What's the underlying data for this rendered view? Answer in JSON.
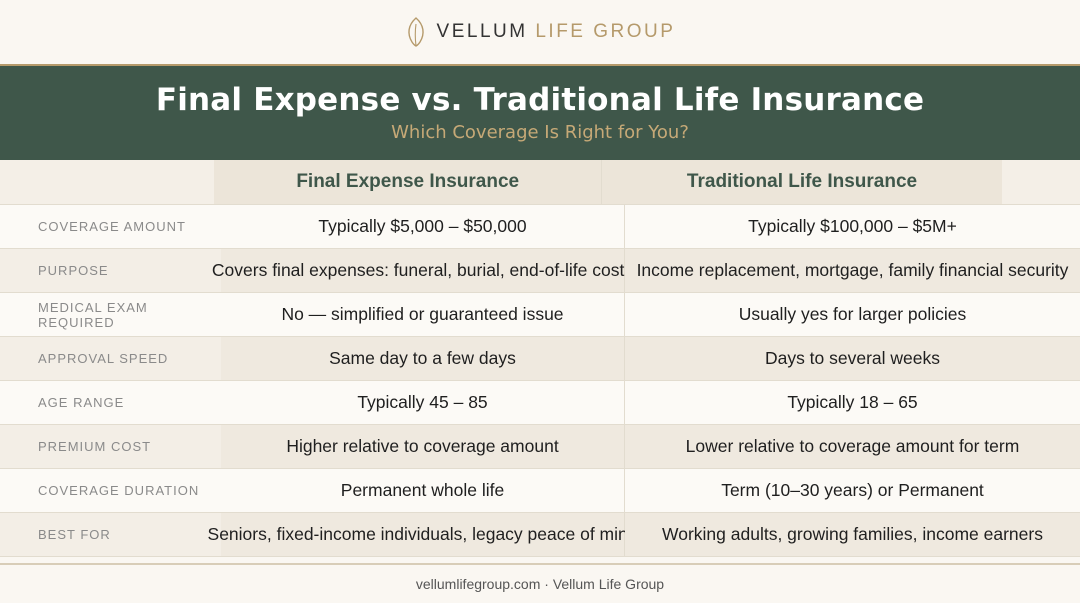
{
  "brand": {
    "name_primary": "VELLUM",
    "name_accent": "LIFE GROUP",
    "logo_icon": "leaf-icon",
    "accent_color": "#b59a6b"
  },
  "header": {
    "title": "Final Expense vs. Traditional Life Insurance",
    "subtitle": "Which Coverage Is Right for You?",
    "band_color": "#3f574a"
  },
  "table": {
    "columns": [
      "Final Expense Insurance",
      "Traditional Life Insurance"
    ],
    "rows": [
      {
        "label": "COVERAGE AMOUNT",
        "a": "Typically $5,000 – $50,000",
        "b": "Typically $100,000 – $5M+"
      },
      {
        "label": "PURPOSE",
        "a": "Covers final expenses: funeral, burial, end-of-life costs",
        "b": "Income replacement, mortgage, family financial security"
      },
      {
        "label": "MEDICAL EXAM REQUIRED",
        "a": "No — simplified or guaranteed issue",
        "b": "Usually yes for larger policies"
      },
      {
        "label": "APPROVAL SPEED",
        "a": "Same day to a few days",
        "b": "Days to several weeks"
      },
      {
        "label": "AGE RANGE",
        "a": "Typically 45 – 85",
        "b": "Typically 18 – 65"
      },
      {
        "label": "PREMIUM COST",
        "a": "Higher relative to coverage amount",
        "b": "Lower relative to coverage amount for term"
      },
      {
        "label": "COVERAGE DURATION",
        "a": "Permanent whole life",
        "b": "Term (10–30 years) or Permanent"
      },
      {
        "label": "BEST FOR",
        "a": "Seniors, fixed-income individuals, legacy peace of mind",
        "b": "Working adults, growing families, income earners"
      }
    ]
  },
  "footer": {
    "text": "vellumlifegroup.com · Vellum Life Group"
  }
}
